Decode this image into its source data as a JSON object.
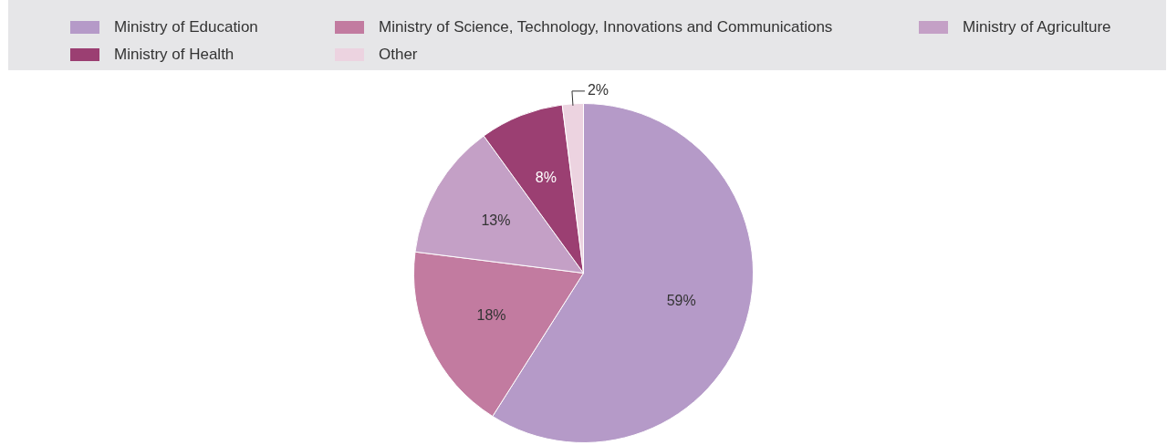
{
  "chart_data": {
    "type": "pie",
    "categories": [
      "Ministry of Education",
      "Ministry of Science, Technology, Innovations and Communications",
      "Ministry of Agriculture",
      "Ministry of Health",
      "Other"
    ],
    "values": [
      59,
      18,
      13,
      8,
      2
    ],
    "value_labels": [
      "59%",
      "18%",
      "13%",
      "8%",
      "2%"
    ],
    "colors": [
      "#b59ac8",
      "#c27ba0",
      "#c4a0c6",
      "#9b3f72",
      "#ecd3e0"
    ],
    "legend": "top"
  }
}
